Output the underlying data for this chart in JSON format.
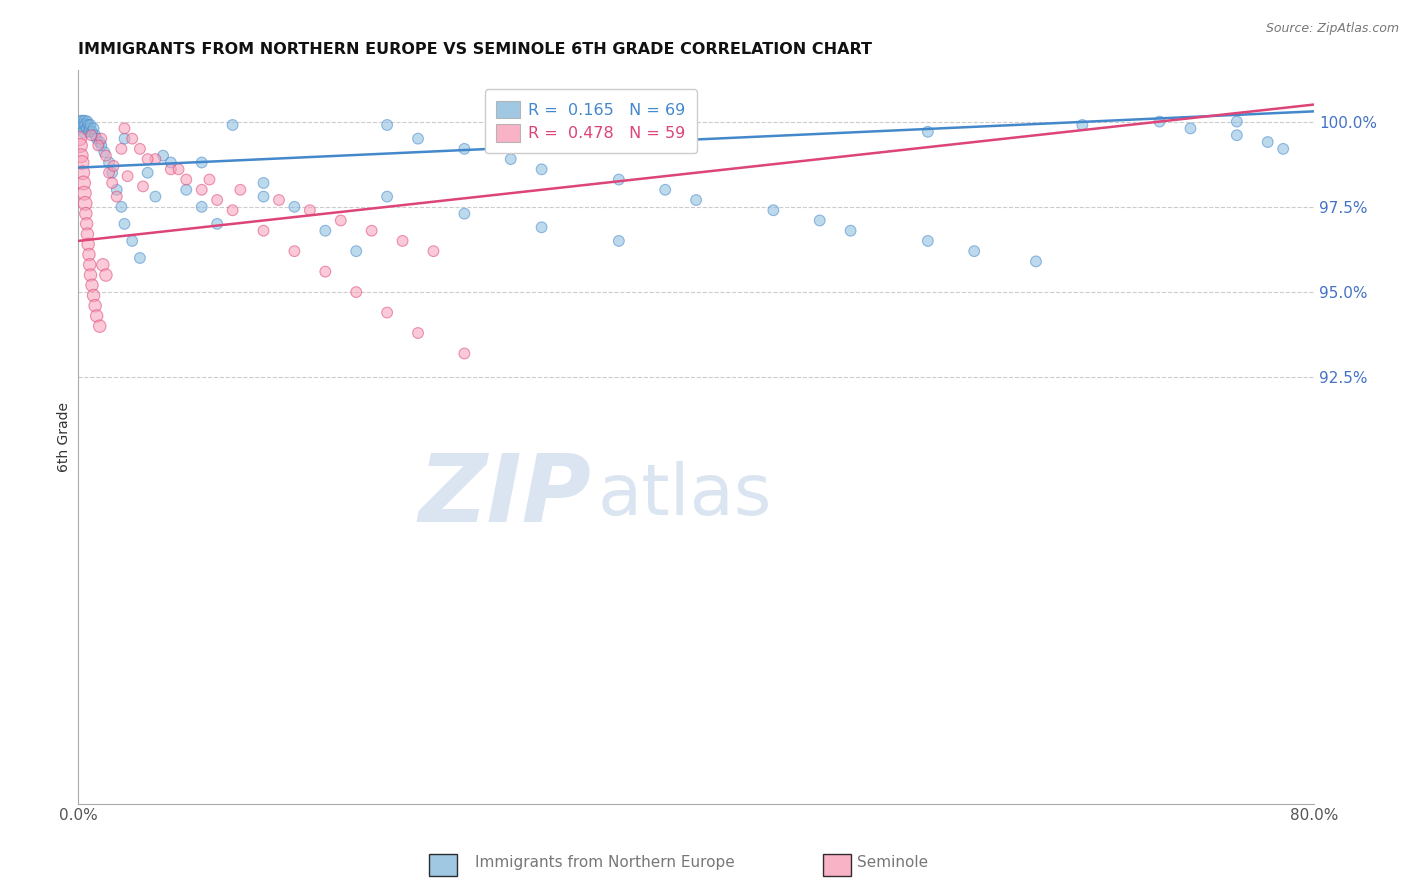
{
  "title": "IMMIGRANTS FROM NORTHERN EUROPE VS SEMINOLE 6TH GRADE CORRELATION CHART",
  "source": "Source: ZipAtlas.com",
  "ylabel": "6th Grade",
  "watermark_zip": "ZIP",
  "watermark_atlas": "atlas",
  "xlim": [
    0.0,
    80.0
  ],
  "ylim": [
    80.0,
    101.5
  ],
  "yticks": [
    92.5,
    95.0,
    97.5,
    100.0
  ],
  "ytick_labels": [
    "92.5%",
    "95.0%",
    "97.5%",
    "100.0%"
  ],
  "xtick_positions": [
    0.0,
    10.0,
    20.0,
    30.0,
    40.0,
    50.0,
    60.0,
    70.0,
    80.0
  ],
  "xtick_labels": [
    "0.0%",
    "",
    "",
    "",
    "",
    "",
    "",
    "",
    "80.0%"
  ],
  "blue_R": 0.165,
  "blue_N": 69,
  "pink_R": 0.478,
  "pink_N": 59,
  "blue_color": "#88bbdd",
  "pink_color": "#f8a0b8",
  "blue_line_color": "#4488cc",
  "pink_line_color": "#dd4477",
  "blue_scatter_x": [
    0.15,
    0.2,
    0.25,
    0.3,
    0.35,
    0.4,
    0.45,
    0.5,
    0.55,
    0.6,
    0.65,
    0.7,
    0.75,
    0.8,
    0.9,
    1.0,
    1.1,
    1.2,
    1.4,
    1.5,
    1.7,
    2.0,
    2.2,
    2.5,
    2.8,
    3.0,
    3.5,
    4.0,
    4.5,
    5.0,
    5.5,
    6.0,
    7.0,
    8.0,
    9.0,
    10.0,
    12.0,
    14.0,
    16.0,
    18.0,
    20.0,
    22.0,
    25.0,
    28.0,
    30.0,
    35.0,
    38.0,
    40.0,
    45.0,
    48.0,
    50.0,
    55.0,
    58.0,
    62.0,
    65.0,
    70.0,
    72.0,
    75.0,
    77.0,
    78.0,
    3.0,
    8.0,
    12.0,
    20.0,
    25.0,
    30.0,
    35.0,
    55.0,
    75.0
  ],
  "blue_scatter_y": [
    99.9,
    100.0,
    99.8,
    100.0,
    99.9,
    99.7,
    100.0,
    99.9,
    99.8,
    100.0,
    99.9,
    99.7,
    99.8,
    99.9,
    99.7,
    99.8,
    99.6,
    99.5,
    99.4,
    99.3,
    99.1,
    98.8,
    98.5,
    98.0,
    97.5,
    97.0,
    96.5,
    96.0,
    98.5,
    97.8,
    99.0,
    98.8,
    98.0,
    97.5,
    97.0,
    99.9,
    97.8,
    97.5,
    96.8,
    96.2,
    99.9,
    99.5,
    99.2,
    98.9,
    98.6,
    98.3,
    98.0,
    97.7,
    97.4,
    97.1,
    96.8,
    96.5,
    96.2,
    95.9,
    99.9,
    100.0,
    99.8,
    99.6,
    99.4,
    99.2,
    99.5,
    98.8,
    98.2,
    97.8,
    97.3,
    96.9,
    96.5,
    99.7,
    100.0
  ],
  "blue_scatter_sizes": [
    80,
    80,
    80,
    80,
    80,
    80,
    80,
    80,
    60,
    60,
    60,
    60,
    60,
    60,
    60,
    60,
    60,
    60,
    60,
    60,
    60,
    60,
    60,
    60,
    60,
    60,
    60,
    60,
    60,
    60,
    60,
    60,
    60,
    60,
    60,
    60,
    60,
    60,
    60,
    60,
    60,
    60,
    60,
    60,
    60,
    60,
    60,
    60,
    60,
    60,
    60,
    60,
    60,
    60,
    60,
    60,
    60,
    60,
    60,
    60,
    60,
    60,
    60,
    60,
    60,
    60,
    60,
    60,
    60
  ],
  "pink_scatter_x": [
    0.1,
    0.15,
    0.2,
    0.25,
    0.3,
    0.35,
    0.4,
    0.45,
    0.5,
    0.55,
    0.6,
    0.65,
    0.7,
    0.75,
    0.8,
    0.9,
    1.0,
    1.1,
    1.2,
    1.4,
    1.6,
    1.8,
    2.0,
    2.2,
    2.5,
    3.0,
    3.5,
    4.0,
    5.0,
    6.0,
    7.0,
    8.0,
    9.0,
    10.0,
    12.0,
    14.0,
    16.0,
    18.0,
    20.0,
    22.0,
    25.0,
    1.5,
    2.8,
    4.5,
    6.5,
    8.5,
    10.5,
    13.0,
    15.0,
    17.0,
    19.0,
    21.0,
    23.0,
    0.85,
    1.3,
    1.8,
    2.3,
    3.2,
    4.2
  ],
  "pink_scatter_y": [
    99.5,
    99.3,
    99.0,
    98.8,
    98.5,
    98.2,
    97.9,
    97.6,
    97.3,
    97.0,
    96.7,
    96.4,
    96.1,
    95.8,
    95.5,
    95.2,
    94.9,
    94.6,
    94.3,
    94.0,
    95.8,
    95.5,
    98.5,
    98.2,
    97.8,
    99.8,
    99.5,
    99.2,
    98.9,
    98.6,
    98.3,
    98.0,
    97.7,
    97.4,
    96.8,
    96.2,
    95.6,
    95.0,
    94.4,
    93.8,
    93.2,
    99.5,
    99.2,
    98.9,
    98.6,
    98.3,
    98.0,
    97.7,
    97.4,
    97.1,
    96.8,
    96.5,
    96.2,
    99.6,
    99.3,
    99.0,
    98.7,
    98.4,
    98.1
  ],
  "pink_scatter_sizes": [
    100,
    100,
    100,
    100,
    100,
    100,
    100,
    100,
    80,
    80,
    80,
    80,
    80,
    80,
    80,
    80,
    80,
    80,
    80,
    80,
    80,
    80,
    60,
    60,
    60,
    60,
    60,
    60,
    60,
    60,
    60,
    60,
    60,
    60,
    60,
    60,
    60,
    60,
    60,
    60,
    60,
    60,
    60,
    60,
    60,
    60,
    60,
    60,
    60,
    60,
    60,
    60,
    60,
    60,
    60,
    60,
    60,
    60,
    60
  ]
}
